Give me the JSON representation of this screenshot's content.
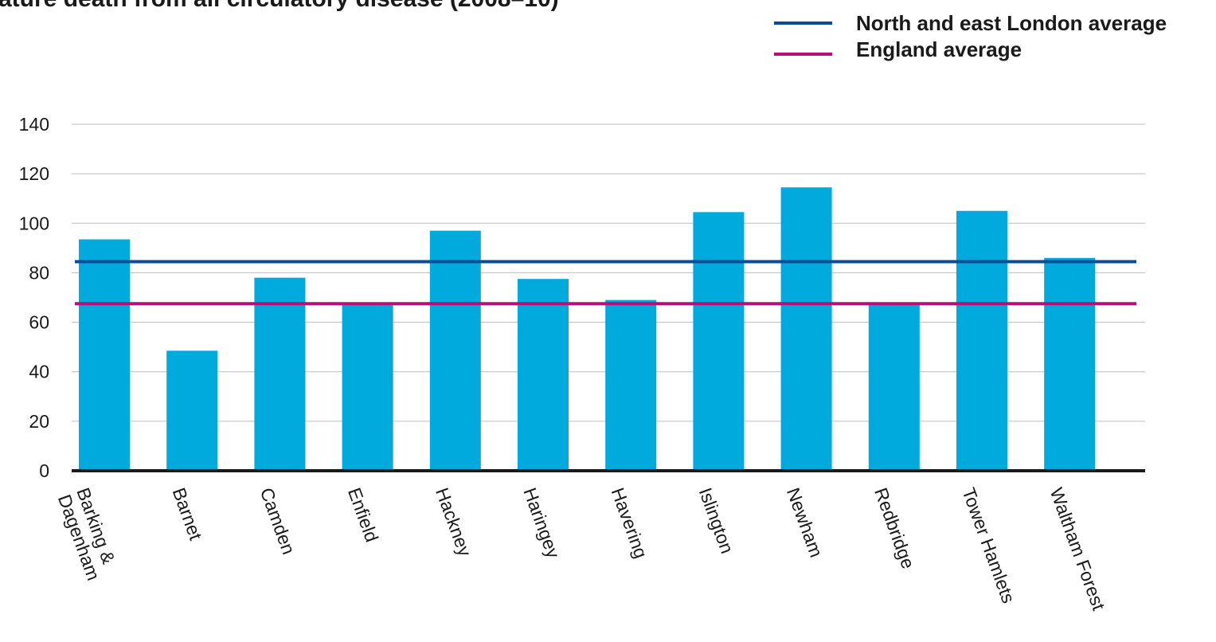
{
  "chart_data": {
    "type": "bar",
    "title": "ature death from all circulatory disease (2008–10)",
    "xlabel": "",
    "ylabel": "",
    "ylim": [
      0,
      140
    ],
    "yticks": [
      "0",
      "20",
      "40",
      "60",
      "80",
      "100",
      "120",
      "140"
    ],
    "grid": true,
    "categories": [
      "Barking & Dagenham",
      "Barnet",
      "Camden",
      "Enfield",
      "Hackney",
      "Haringey",
      "Havering",
      "Islington",
      "Newham",
      "Redbridge",
      "Tower Hamlets",
      "Waltham Forest"
    ],
    "series": [
      {
        "values": [
          93.5,
          48.5,
          78,
          67.5,
          97,
          77.5,
          69,
          104.5,
          114.5,
          67.5,
          105,
          86
        ],
        "color": "#00aadd"
      }
    ],
    "reference_lines": [
      {
        "name": "North and east London average",
        "value": 84.5,
        "color": "#0a4d96"
      },
      {
        "name": "England average",
        "value": 67.5,
        "color": "#b5107a"
      }
    ],
    "legend": {
      "position": "top-right",
      "items": [
        "North and east London average",
        "England average"
      ]
    }
  }
}
